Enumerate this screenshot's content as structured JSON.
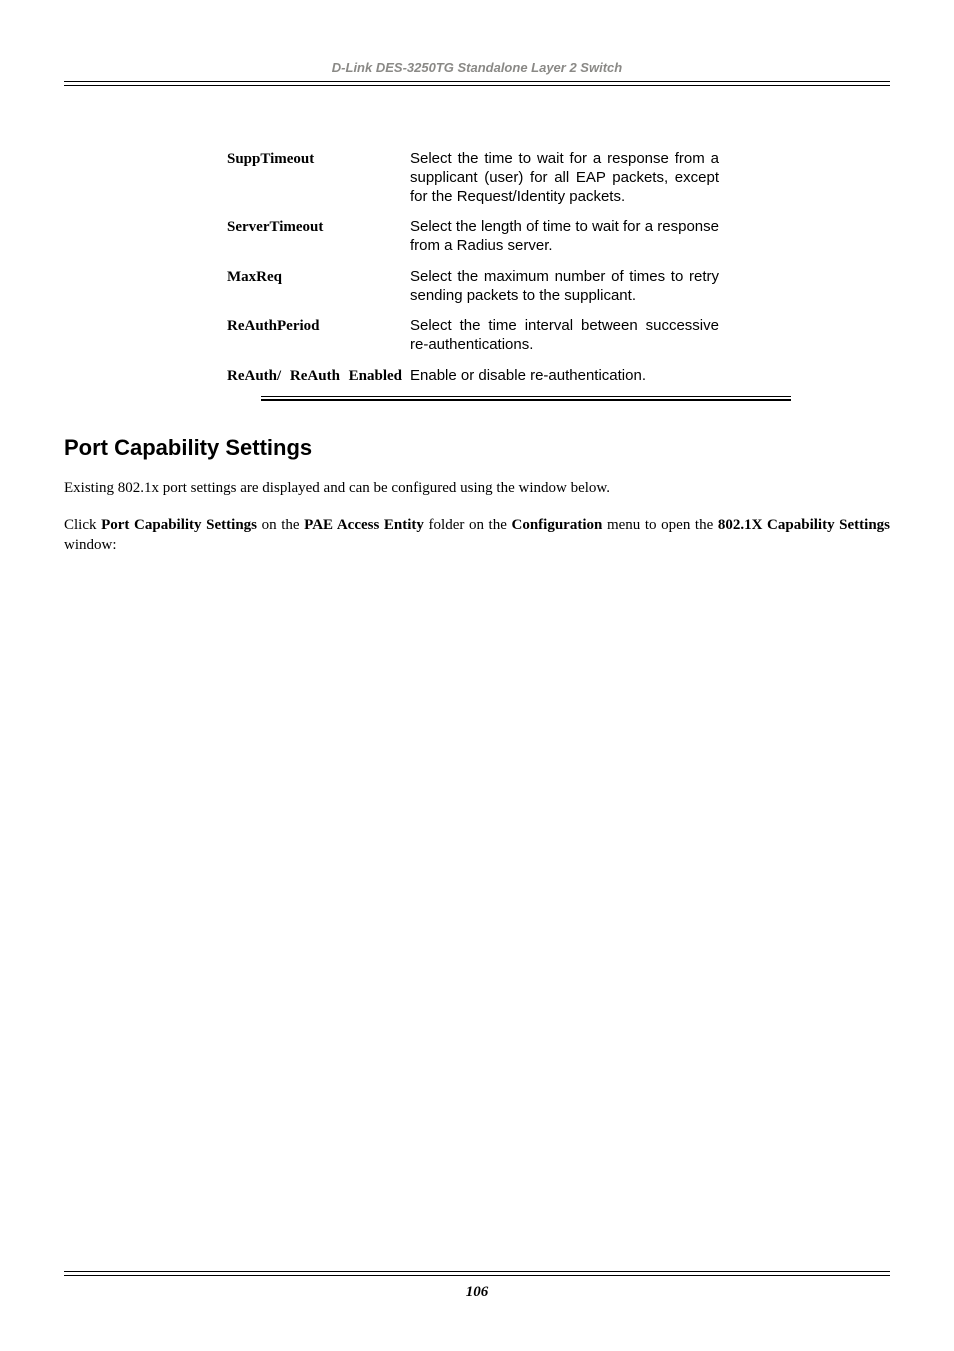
{
  "header": {
    "text": "D-Link DES-3250TG Standalone Layer 2 Switch"
  },
  "params": [
    {
      "label": "SuppTimeout",
      "desc": "Select the time to wait for a response from a supplicant (user) for all EAP packets, except for the Request/Identity packets.",
      "justify_label": false,
      "justify_desc": true
    },
    {
      "label": "ServerTimeout",
      "desc": "Select the length of time to wait for a response from a Radius server.",
      "justify_label": false,
      "justify_desc": true
    },
    {
      "label": "MaxReq",
      "desc": "Select the maximum number of times to retry sending packets to the supplicant.",
      "justify_label": false,
      "justify_desc": true
    },
    {
      "label": "ReAuthPeriod",
      "desc": "Select the time interval between successive re-authentications.",
      "justify_label": false,
      "justify_desc": true
    },
    {
      "label": "ReAuth/ ReAuth Enabled",
      "desc": "Enable or disable re-authentication.",
      "justify_label": true,
      "justify_desc": false
    }
  ],
  "section": {
    "title": "Port Capability Settings",
    "p1": "Existing 802.1x port settings are displayed and can be configured using the window below.",
    "p2_prefix": "Click ",
    "p2_b1": "Port Capability Settings",
    "p2_mid1": " on the ",
    "p2_b2": "PAE Access Entity",
    "p2_mid2": " folder on the ",
    "p2_b3": "Configuration",
    "p2_mid3": " menu to open the ",
    "p2_b4": "802.1X Capability Settings",
    "p2_suffix": " window:"
  },
  "footer": {
    "page": "106"
  }
}
